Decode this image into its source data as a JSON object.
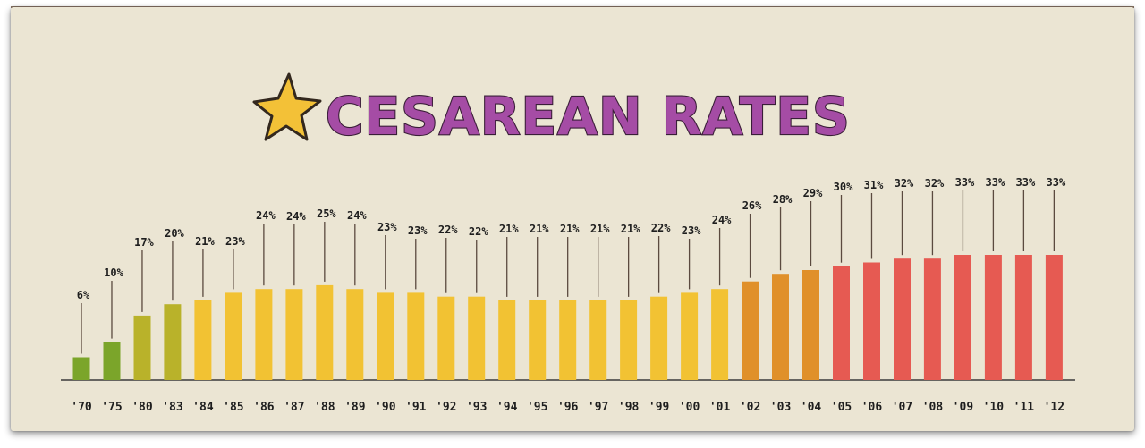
{
  "chart_data": {
    "type": "bar",
    "title": "CESAREAN RATES",
    "categories": [
      "'70",
      "'75",
      "'80",
      "'83",
      "'84",
      "'85",
      "'86",
      "'87",
      "'88",
      "'89",
      "'90",
      "'91",
      "'92",
      "'93",
      "'94",
      "'95",
      "'96",
      "'97",
      "'98",
      "'99",
      "'00",
      "'01",
      "'02",
      "'03",
      "'04",
      "'05",
      "'06",
      "'07",
      "'08",
      "'09",
      "'10",
      "'11",
      "'12"
    ],
    "values": [
      6,
      10,
      17,
      20,
      21,
      23,
      24,
      24,
      25,
      24,
      23,
      23,
      22,
      22,
      21,
      21,
      21,
      21,
      21,
      22,
      23,
      24,
      26,
      28,
      29,
      30,
      31,
      32,
      32,
      33,
      33,
      33,
      33
    ],
    "data_labels": [
      "6%",
      "10%",
      "17%",
      "20%",
      "21%",
      "23%",
      "24%",
      "24%",
      "25%",
      "24%",
      "23%",
      "23%",
      "22%",
      "22%",
      "21%",
      "21%",
      "21%",
      "21%",
      "21%",
      "22%",
      "23%",
      "24%",
      "26%",
      "28%",
      "29%",
      "30%",
      "31%",
      "32%",
      "32%",
      "33%",
      "33%",
      "33%",
      "33%"
    ],
    "colors": [
      "#7ba52a",
      "#7ba52a",
      "#b9b22a",
      "#b9b22a",
      "#f2c233",
      "#f2c233",
      "#f2c233",
      "#f2c233",
      "#f2c233",
      "#f2c233",
      "#f2c233",
      "#f2c233",
      "#f2c233",
      "#f2c233",
      "#f2c233",
      "#f2c233",
      "#f2c233",
      "#f2c233",
      "#f2c233",
      "#f2c233",
      "#f2c233",
      "#f2c233",
      "#e0902a",
      "#e0902a",
      "#e0902a",
      "#e65a52",
      "#e65a52",
      "#e65a52",
      "#e65a52",
      "#e65a52",
      "#e65a52",
      "#e65a52",
      "#e65a52"
    ],
    "ylim": [
      0,
      33
    ],
    "grid": false,
    "legend": "none"
  }
}
